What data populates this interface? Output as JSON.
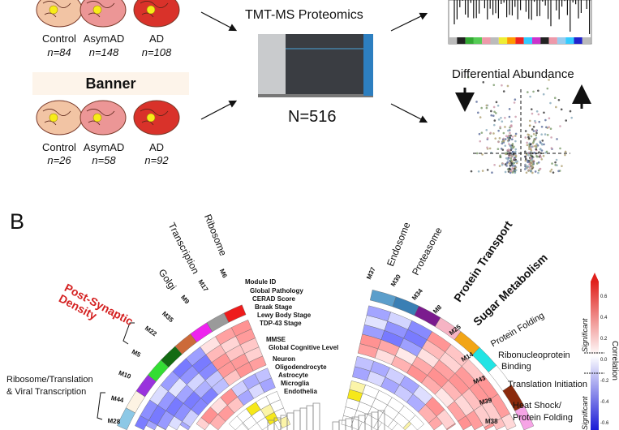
{
  "panel_a": {
    "cohort1_groups": [
      {
        "label": "Control",
        "n": "n=84",
        "color": "#f2c4a4"
      },
      {
        "label": "AsymAD",
        "n": "n=148",
        "color": "#ec9696"
      },
      {
        "label": "AD",
        "n": "n=108",
        "color": "#d9322a"
      }
    ],
    "cohort2_title": "Banner",
    "cohort2_groups": [
      {
        "label": "Control",
        "n": "n=26",
        "color": "#f2c4a4"
      },
      {
        "label": "AsymAD",
        "n": "n=58",
        "color": "#ec9696"
      },
      {
        "label": "AD",
        "n": "n=92",
        "color": "#d9322a"
      }
    ],
    "method_title": "TMT-MS Proteomics",
    "total_n": "N=516",
    "diff_title": "Differential Abundance"
  },
  "panel_b": {
    "panel_letter": "B",
    "ring_labels": {
      "module_id": "Module ID",
      "traits": [
        "Global Pathology",
        "CERAD Score",
        "Braak Stage",
        "Lewy Body Stage",
        "TDP-43 Stage"
      ],
      "cognition": [
        "MMSE",
        "Global Cognitive Level"
      ],
      "cell_types": [
        "Neuron",
        "Oligodendrocyte",
        "Astrocyte",
        "Microglia",
        "Endothelia"
      ]
    },
    "left_modules": [
      {
        "id": "M6",
        "color": "#ee1c1c"
      },
      {
        "id": "M17",
        "color": "#9a9a9a"
      },
      {
        "id": "M9",
        "color": "#ee22ee"
      },
      {
        "id": "M35",
        "color": "#cc6a3a"
      },
      {
        "id": "M22",
        "color": "#136b13"
      },
      {
        "id": "M5",
        "color": "#33dd33"
      },
      {
        "id": "M10",
        "color": "#9933dd"
      },
      {
        "id": "M44",
        "color": "#fdf3e3"
      },
      {
        "id": "M28",
        "color": "#8cc8e6"
      }
    ],
    "right_modules": [
      {
        "id": "M37",
        "color": "#5b9ecb"
      },
      {
        "id": "M30",
        "color": "#3a7fb4"
      },
      {
        "id": "M34",
        "color": "#7b1b8e"
      },
      {
        "id": "M8",
        "color": "#f6b4c4"
      },
      {
        "id": "M25",
        "color": "#f2a516"
      },
      {
        "id": "M14",
        "color": "#22e4e4"
      },
      {
        "id": "M43",
        "color": "#ffffff"
      },
      {
        "id": "M39",
        "color": "#8b2a0c"
      },
      {
        "id": "M38",
        "color": "#f6a4e6"
      }
    ],
    "functions": {
      "ribosome": "Ribosome",
      "transcription": "Transcription",
      "golgi": "Golgi",
      "post_synaptic": "Post-Synaptic Density",
      "ribo_translation": [
        "Ribosome/Translation",
        "& Viral Transcription"
      ],
      "endosome": "Endosome",
      "proteasome": "Proteasome",
      "protein_transport": "Protein Transport",
      "sugar_metabolism": "Sugar Metabolism",
      "protein_folding": "Protein Folding",
      "ribonucleoprotein": [
        "Ribonucleoprotein",
        "Binding"
      ],
      "translation_initiation": "Translation Initiation",
      "heat_shock": [
        "Heat Shock/",
        "Protein Folding"
      ]
    },
    "colorbar": {
      "title": "Correlation",
      "significant_label": "Significant",
      "ticks": [
        "0.6",
        "0.4",
        "0.2",
        "0.0",
        "-0.2",
        "-0.4",
        "-0.6"
      ],
      "range": [
        -0.6,
        0.6
      ],
      "high_color": "#e0201c",
      "mid_color": "#ffffff",
      "low_color": "#1a1ad6"
    },
    "highlight_color": "#d42020"
  }
}
